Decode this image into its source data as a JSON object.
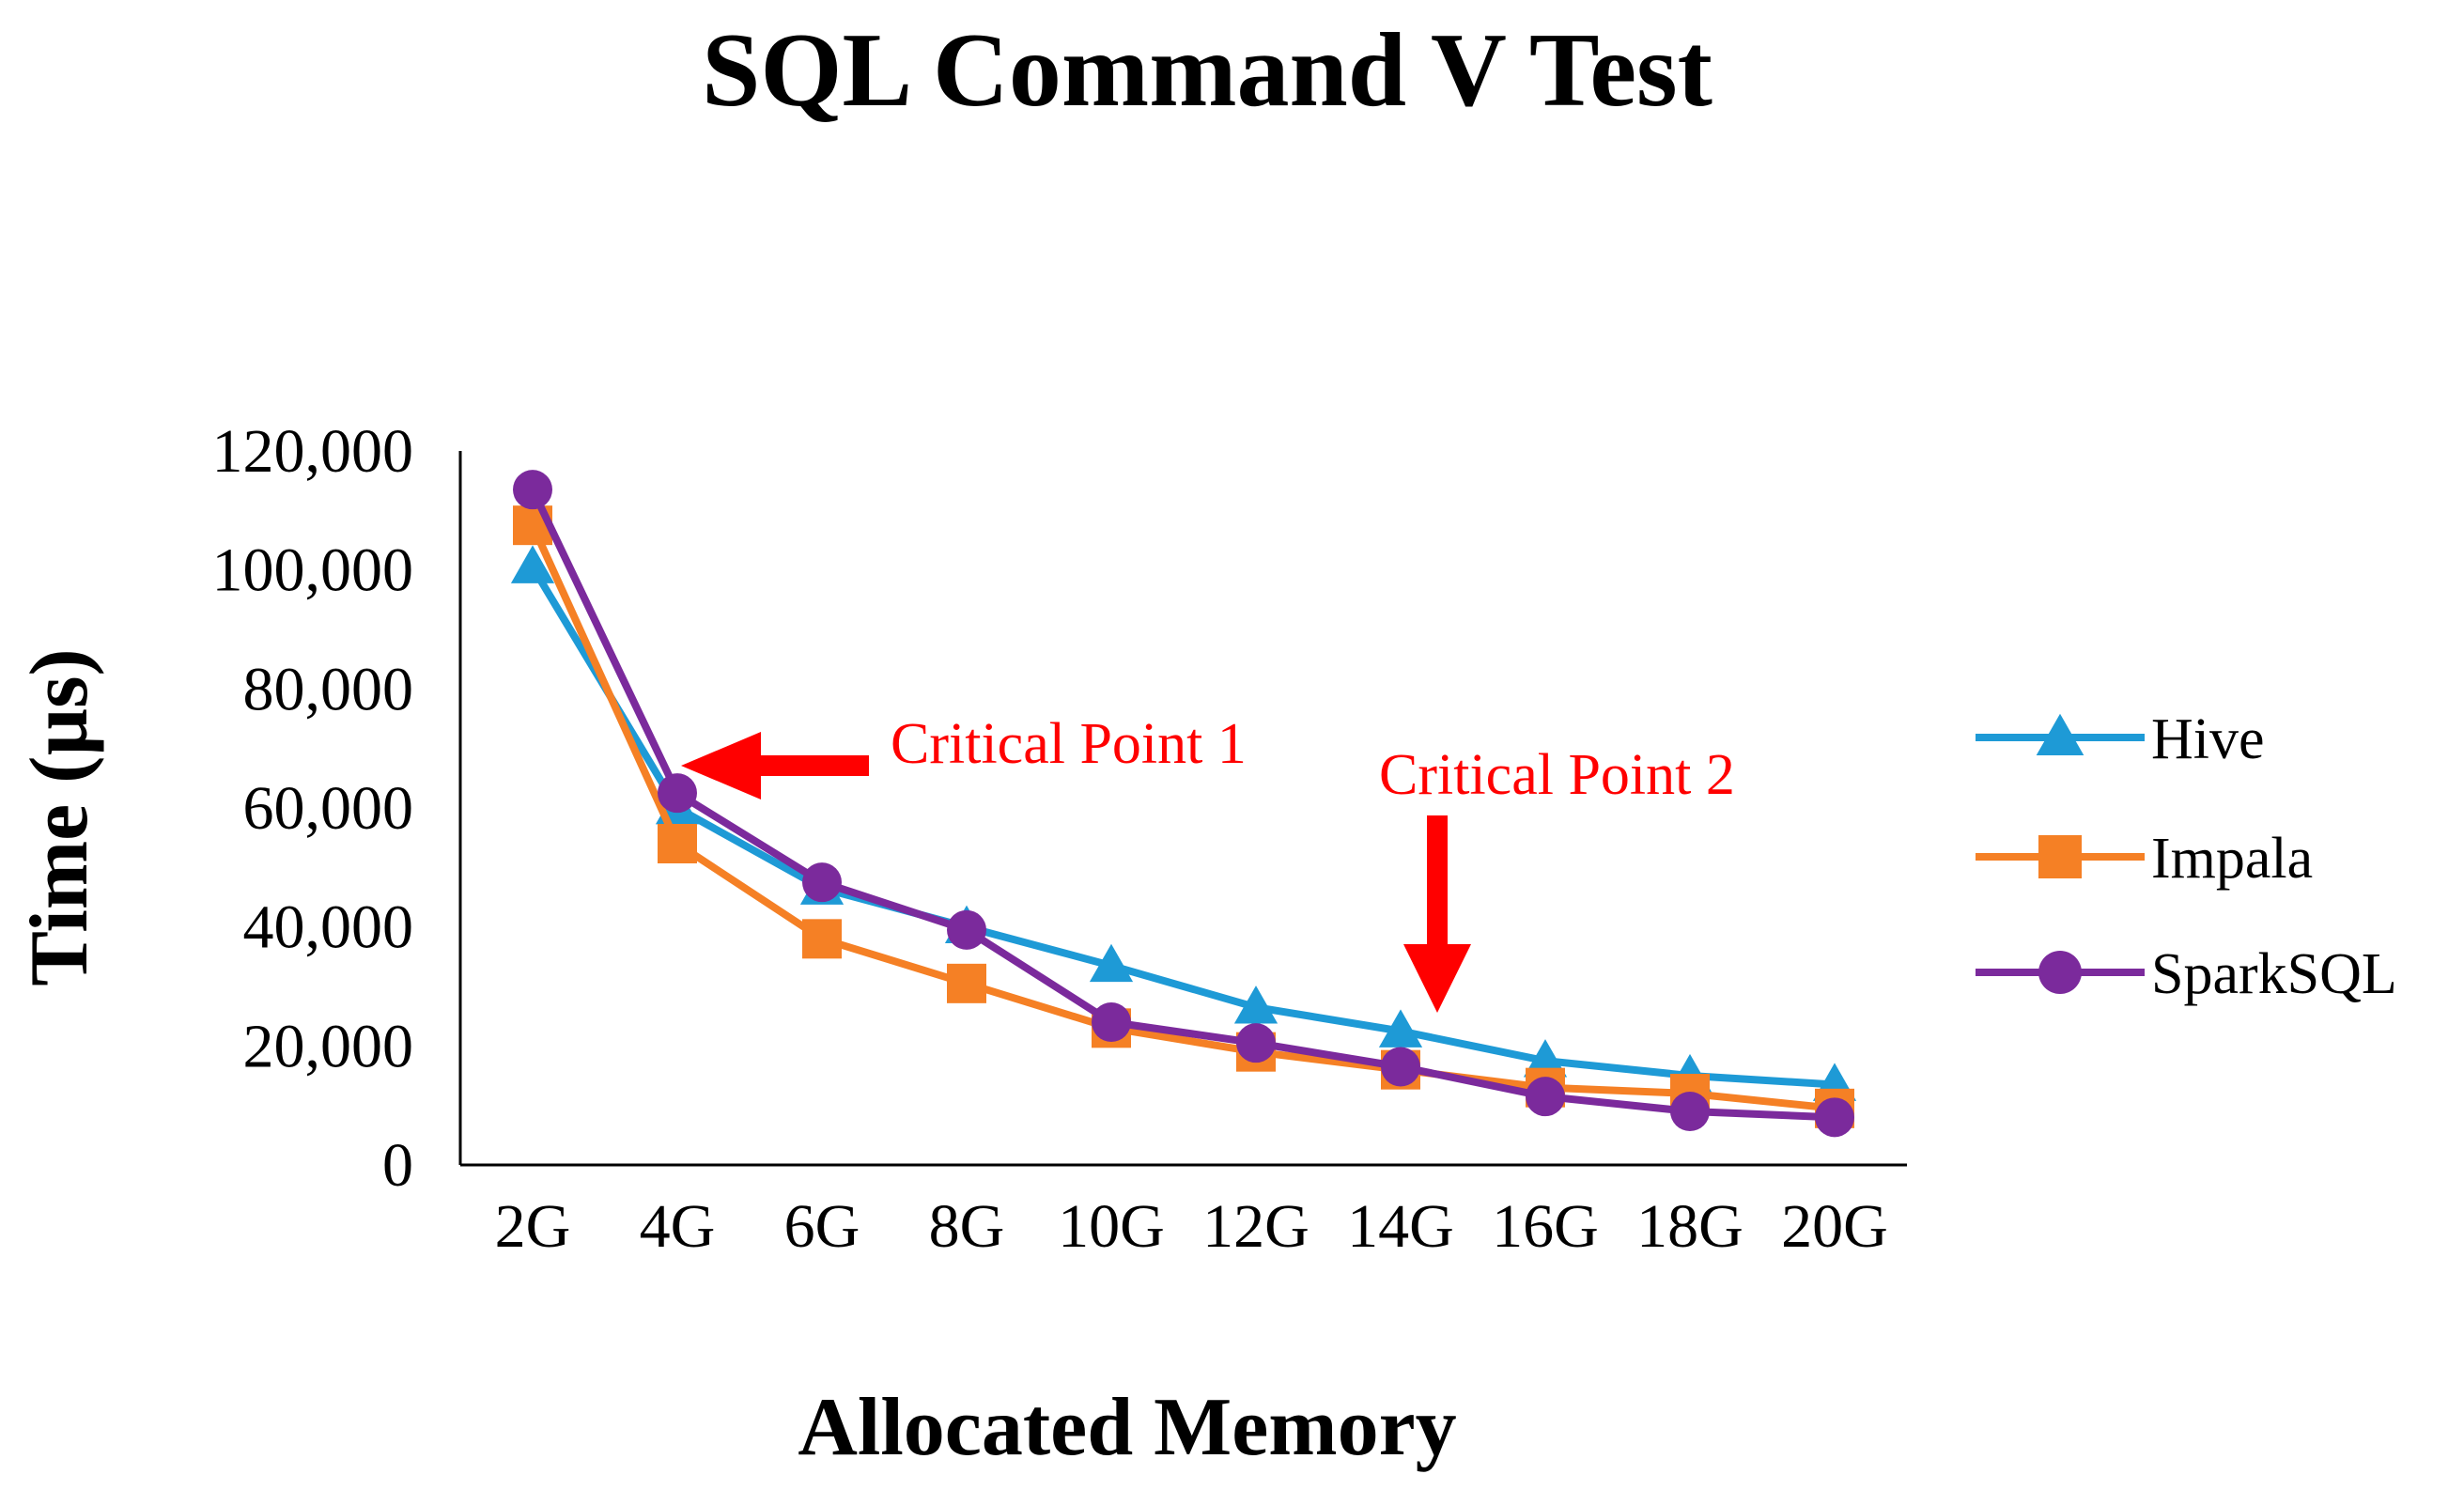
{
  "chart_data": {
    "type": "line",
    "title": "SQL Command V Test",
    "xlabel": "Allocated Memory",
    "ylabel": "Time (µs)",
    "categories": [
      "2G",
      "4G",
      "6G",
      "8G",
      "10G",
      "12G",
      "14G",
      "16G",
      "18G",
      "20G"
    ],
    "ylim": [
      0,
      120000
    ],
    "yticks": [
      0,
      20000,
      40000,
      60000,
      80000,
      100000,
      120000
    ],
    "ytick_labels": [
      "0",
      "20,000",
      "40,000",
      "60,000",
      "80,000",
      "100,000",
      "120,000"
    ],
    "grid": false,
    "legend_position": "right",
    "series": [
      {
        "name": "Hive",
        "color": "#1e9ad6",
        "marker": "triangle",
        "values": [
          100500,
          60000,
          46500,
          40000,
          33500,
          26500,
          22500,
          17500,
          15000,
          13500
        ]
      },
      {
        "name": "Impala",
        "color": "#f58025",
        "marker": "square",
        "values": [
          107500,
          54000,
          38000,
          30500,
          23000,
          19000,
          16000,
          13000,
          12000,
          9500
        ]
      },
      {
        "name": "SparkSQL",
        "color": "#7b2a9c",
        "marker": "circle",
        "values": [
          113500,
          62500,
          47500,
          39500,
          24000,
          20500,
          16500,
          11500,
          9000,
          8000
        ]
      }
    ],
    "annotations": [
      {
        "text": "Critical  Point 1",
        "color": "#ff0000",
        "arrow": "left",
        "points_to": "4G"
      },
      {
        "text": "Critical  Point 2",
        "color": "#ff0000",
        "arrow": "down",
        "points_to": "14G"
      }
    ]
  }
}
